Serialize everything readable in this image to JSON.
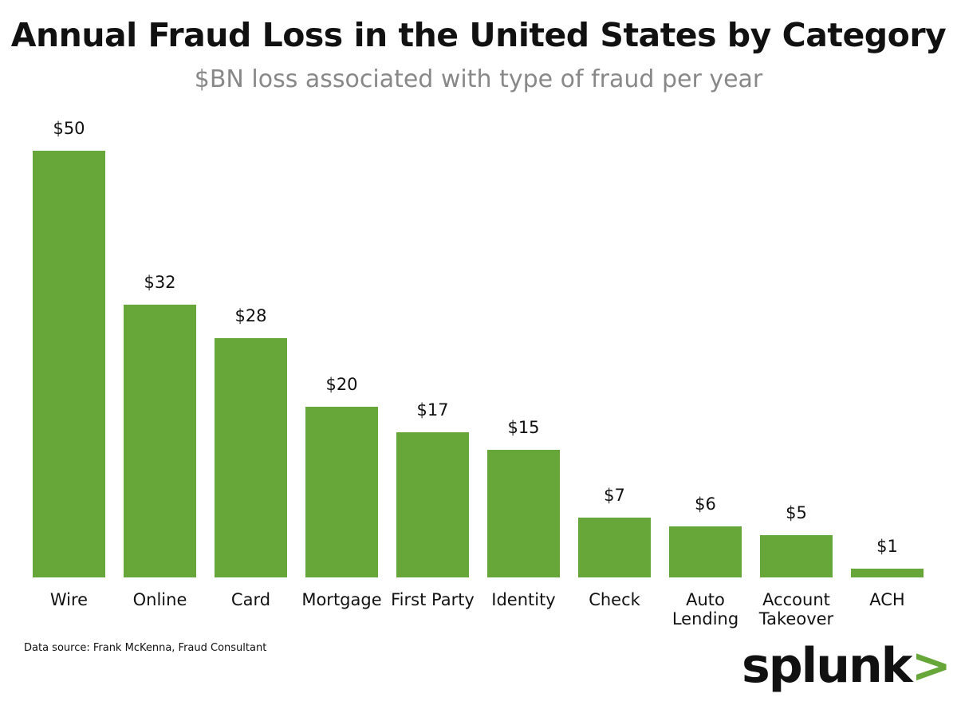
{
  "chart_data": {
    "type": "bar",
    "title": "Annual Fraud Loss in the United States by Category",
    "subtitle": "$BN loss associated with type of fraud per year",
    "categories": [
      "Wire",
      "Online",
      "Card",
      "Mortgage",
      "First Party",
      "Identity",
      "Check",
      "Auto Lending",
      "Account Takeover",
      "ACH"
    ],
    "values": [
      50,
      32,
      28,
      20,
      17,
      15,
      7,
      6,
      5,
      1
    ],
    "value_labels": [
      "$50",
      "$32",
      "$28",
      "$20",
      "$17",
      "$15",
      "$7",
      "$6",
      "$5",
      "$1"
    ],
    "color": "#67a73a",
    "source": "Data source: Frank McKenna, Fraud Consultant",
    "logo": {
      "word": "splunk",
      "mark": ">"
    }
  }
}
